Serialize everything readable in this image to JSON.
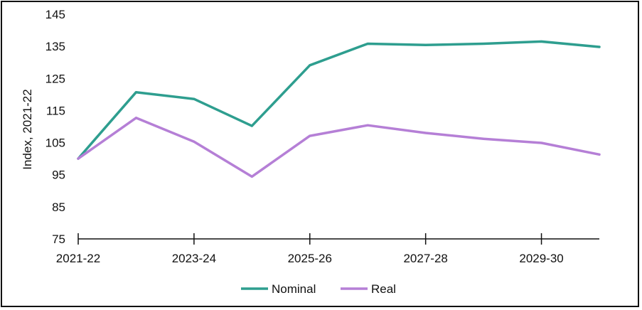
{
  "chart_data": {
    "type": "line",
    "title": "",
    "xlabel": "",
    "ylabel": "Index, 2021-22",
    "ylim": [
      75,
      145
    ],
    "yticks": [
      "75",
      "85",
      "95",
      "105",
      "115",
      "125",
      "135",
      "145"
    ],
    "x": [
      "2021-22",
      "2022-23",
      "2023-24",
      "2024-25",
      "2025-26",
      "2026-27",
      "2027-28",
      "2028-29",
      "2029-30",
      "2030-31"
    ],
    "xtick_labels": [
      "2021-22",
      "2023-24",
      "2025-26",
      "2027-28",
      "2029-30"
    ],
    "grid": false,
    "legend_position": "bottom",
    "series": [
      {
        "name": "Nominal",
        "color": "#2e9e8f",
        "values": [
          100,
          120.7,
          118.6,
          110.2,
          129.1,
          135.8,
          135.4,
          135.8,
          136.5,
          134.8
        ]
      },
      {
        "name": "Real",
        "color": "#b57fd6",
        "values": [
          100,
          112.7,
          105.3,
          94.4,
          107.1,
          110.4,
          108.0,
          106.2,
          104.9,
          101.3
        ]
      }
    ]
  }
}
